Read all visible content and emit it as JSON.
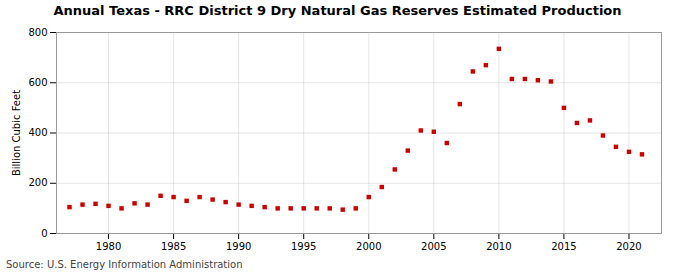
{
  "chart_data": {
    "type": "scatter",
    "title": "Annual Texas - RRC District 9 Dry Natural Gas Reserves Estimated Production",
    "ylabel": "Billion Cubic Feet",
    "annotations": [
      "Source: U.S. Energy Information Administration"
    ],
    "x": [
      1977,
      1978,
      1979,
      1980,
      1981,
      1982,
      1983,
      1984,
      1985,
      1986,
      1987,
      1988,
      1989,
      1990,
      1991,
      1992,
      1993,
      1994,
      1995,
      1996,
      1997,
      1998,
      1999,
      2000,
      2001,
      2002,
      2003,
      2004,
      2005,
      2006,
      2007,
      2008,
      2009,
      2010,
      2011,
      2012,
      2013,
      2014,
      2015,
      2016,
      2017,
      2018,
      2019,
      2020,
      2021
    ],
    "values": [
      105,
      115,
      118,
      110,
      100,
      120,
      115,
      150,
      145,
      130,
      145,
      135,
      125,
      115,
      110,
      105,
      100,
      100,
      100,
      100,
      100,
      95,
      100,
      145,
      185,
      255,
      330,
      410,
      405,
      360,
      515,
      645,
      670,
      735,
      615,
      615,
      610,
      605,
      500,
      440,
      450,
      390,
      345,
      325,
      315
    ],
    "color": "#cc0000",
    "marker": "square",
    "xlim": [
      1976,
      2022.5
    ],
    "ylim": [
      0,
      800
    ],
    "xticks": [
      1980,
      1985,
      1990,
      1995,
      2000,
      2005,
      2010,
      2015,
      2020
    ],
    "yticks": [
      0,
      200,
      400,
      600,
      800
    ],
    "grid": true
  }
}
